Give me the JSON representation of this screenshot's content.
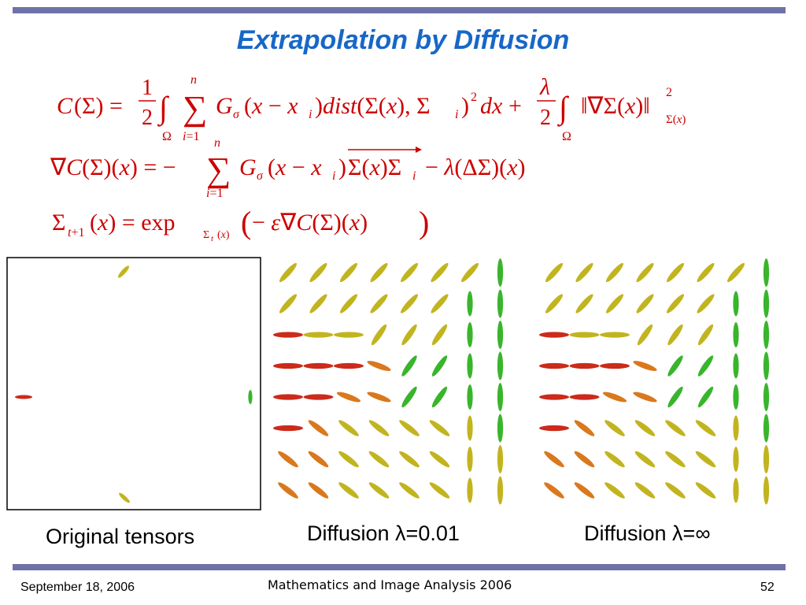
{
  "slide": {
    "title": "Extrapolation by Diffusion",
    "equations": [
      "C(Σ) = ½ ∫_Ω Σ_{i=1}^{n} G_σ(x − x_i) dist(Σ(x), Σ_i)² dx + λ/2 ∫_Ω ‖∇Σ(x)‖²_{Σ(x)}",
      "∇C(Σ)(x) = −Σ_{i=1}^{n} G_σ(x − x_i) Σ(x)Σ_i − λ(ΔΣ)(x)",
      "Σ_{t+1}(x) = exp_{Σ_t(x)}(−ε∇C(Σ)(x))"
    ],
    "captions": {
      "original": "Original tensors",
      "diffusion_small": "Diffusion λ=0.01",
      "diffusion_inf": "Diffusion λ=∞"
    },
    "footer": {
      "date": "September 18, 2006",
      "center": "Mathematics and Image Analysis 2006",
      "page": "52"
    },
    "colors": {
      "title": "#1767c8",
      "equation": "#cc0000",
      "bar": "#6f72a6",
      "tensor_red": "#cc2a1a",
      "tensor_orange": "#d9781c",
      "tensor_yellow": "#c2b41e",
      "tensor_green": "#39b52c"
    }
  }
}
